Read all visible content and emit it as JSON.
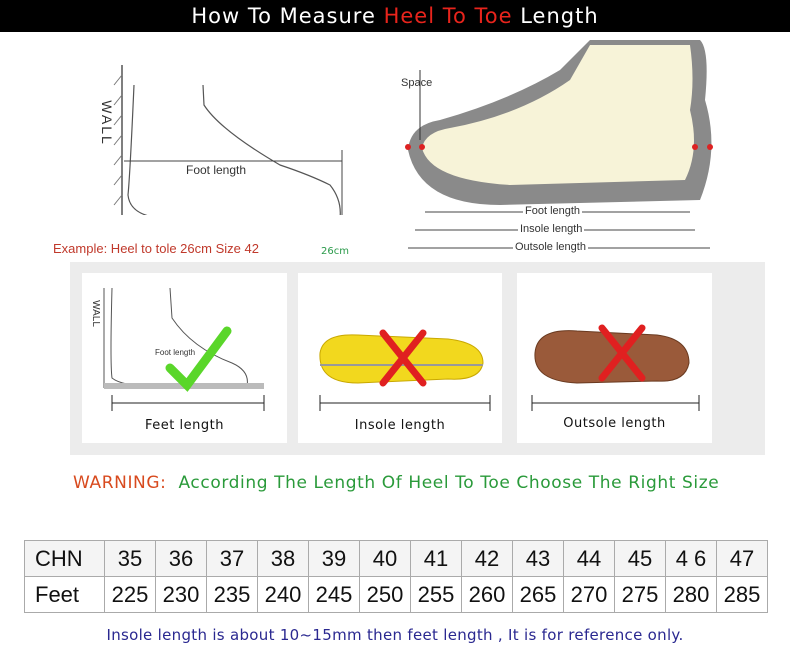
{
  "title": {
    "prefix": "How To Measure ",
    "highlight": "Heel To Toe",
    "suffix": " Length"
  },
  "left_diagram": {
    "wall": "WALL",
    "foot_length": "Foot length",
    "example": "Example: Heel to tole 26cm Size 42",
    "mark": "26cm"
  },
  "right_diagram": {
    "space": "Space",
    "foot_length": "Foot length",
    "insole_length": "Insole length",
    "outsole_length": "Outsole length"
  },
  "cards": [
    {
      "label": "Feet length",
      "status": "correct",
      "wall": "WALL",
      "foot_length": "Foot length"
    },
    {
      "label": "Insole length",
      "status": "wrong"
    },
    {
      "label": "Outsole length",
      "status": "wrong"
    }
  ],
  "warning": {
    "label": "WARNING:",
    "text": "According The Length Of Heel To Toe Choose The Right Size"
  },
  "size_table": {
    "rows": [
      {
        "header": "CHN",
        "values": [
          "35",
          "36",
          "37",
          "38",
          "39",
          "40",
          "41",
          "42",
          "43",
          "44",
          "45",
          "4 6",
          "47"
        ]
      },
      {
        "header": "Feet",
        "values": [
          "225",
          "230",
          "235",
          "240",
          "245",
          "250",
          "255",
          "260",
          "265",
          "270",
          "275",
          "280",
          "285"
        ]
      }
    ]
  },
  "footer": "Insole length is about 10~15mm then feet length , It is for reference only.",
  "colors": {
    "title_highlight": "#e8241c",
    "warning": "#d84a1e",
    "warning_text": "#2a9a3a",
    "footer": "#2a2890",
    "check": "#5ad62a",
    "cross": "#e02020"
  }
}
